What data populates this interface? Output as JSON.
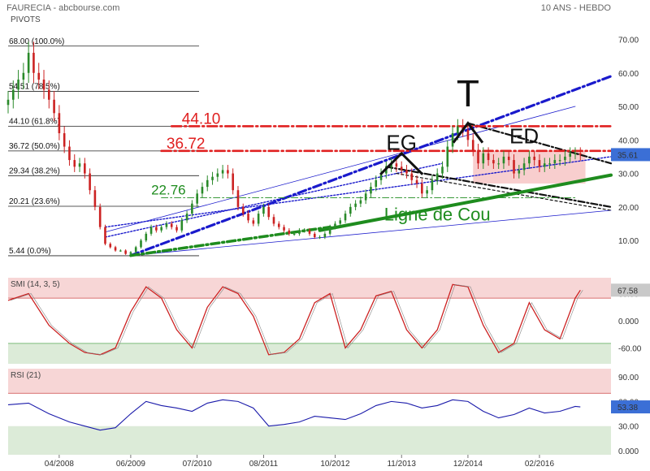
{
  "header": {
    "left_title": "FAURECIA - abcbourse.com",
    "right_title": "10 ANS - HEBDO",
    "pivots_label": "PIVOTS"
  },
  "colors": {
    "candle_up": "#2a8a2a",
    "candle_down": "#cc2222",
    "blue_trend": "#1a1acc",
    "green_neckline": "#1e8c1e",
    "red_level": "#e02020",
    "last_price_badge": "#3b6fd6",
    "overbought_zone": "#f7d6d6",
    "oversold_zone": "#dcebd8",
    "smi_line": "#cc2222",
    "rsi_line": "#1a1aaa"
  },
  "chart_data": [
    {
      "type": "line",
      "name": "price",
      "subtype": "candlestick-weekly",
      "x_labels": [
        "04/2008",
        "06/2009",
        "07/2010",
        "08/2011",
        "10/2012",
        "11/2013",
        "12/2014",
        "02/2016"
      ],
      "x_dates": [
        "2008-04",
        "2009-06",
        "2010-07",
        "2011-08",
        "2012-10",
        "2013-11",
        "2014-12",
        "2016-02"
      ],
      "y_ticks": [
        "70.00",
        "60.00",
        "50.00",
        "40.00",
        "30.00",
        "20.00",
        "10.00"
      ],
      "y_tick_values": [
        70,
        60,
        50,
        40,
        30,
        20,
        10
      ],
      "ylim": [
        3,
        74
      ],
      "xlim": [
        "2007-06",
        "2017-04"
      ],
      "last_value": "35.61",
      "pivots": [
        {
          "label": "68.00 (100.0%)",
          "value": 68.0
        },
        {
          "label": "54.51 (78.5%)",
          "value": 54.51
        },
        {
          "label": "44.10 (61.8%)",
          "value": 44.1
        },
        {
          "label": "36.72 (50.0%)",
          "value": 36.72
        },
        {
          "label": "29.34 (38.2%)",
          "value": 29.34
        },
        {
          "label": "20.21 (23.6%)",
          "value": 20.21
        },
        {
          "label": "5.44 (0.0%)",
          "value": 5.44
        }
      ],
      "levels": [
        {
          "label": "44.10",
          "value": 44.1,
          "color": "#e02020"
        },
        {
          "label": "36.72",
          "value": 36.72,
          "color": "#e02020"
        },
        {
          "label": "22.76",
          "value": 22.76,
          "color": "#1e8c1e"
        }
      ],
      "annotations": [
        {
          "text": "T",
          "x": "2014-12",
          "y": 50
        },
        {
          "text": "EG",
          "x": "2013-11",
          "y": 37
        },
        {
          "text": "ED",
          "x": "2015-11",
          "y": 39
        },
        {
          "text": "Ligne de Cou",
          "x": "2014-06",
          "y": 16
        }
      ],
      "series": [
        {
          "x": [
            "2007-06",
            "2007-07",
            "2007-08",
            "2007-09",
            "2007-10",
            "2007-11",
            "2007-12",
            "2008-01",
            "2008-02",
            "2008-03",
            "2008-04",
            "2008-05",
            "2008-06",
            "2008-07",
            "2008-08",
            "2008-09",
            "2008-10",
            "2008-11",
            "2008-12",
            "2009-01",
            "2009-02",
            "2009-03",
            "2009-04",
            "2009-05",
            "2009-06",
            "2009-07",
            "2009-08",
            "2009-09",
            "2009-10",
            "2009-11",
            "2009-12",
            "2010-01",
            "2010-02",
            "2010-03",
            "2010-04",
            "2010-05",
            "2010-06",
            "2010-07",
            "2010-08",
            "2010-09",
            "2010-10",
            "2010-11",
            "2010-12",
            "2011-01",
            "2011-02",
            "2011-03",
            "2011-04",
            "2011-05",
            "2011-06",
            "2011-07",
            "2011-08",
            "2011-09",
            "2011-10",
            "2011-11",
            "2011-12",
            "2012-01",
            "2012-02",
            "2012-03",
            "2012-04",
            "2012-05",
            "2012-06",
            "2012-07",
            "2012-08",
            "2012-09",
            "2012-10",
            "2012-11",
            "2012-12",
            "2013-01",
            "2013-02",
            "2013-03",
            "2013-04",
            "2013-05",
            "2013-06",
            "2013-07",
            "2013-08",
            "2013-09",
            "2013-10",
            "2013-11",
            "2013-12",
            "2014-01",
            "2014-02",
            "2014-03",
            "2014-04",
            "2014-05",
            "2014-06",
            "2014-07",
            "2014-08",
            "2014-09",
            "2014-10",
            "2014-11",
            "2014-12",
            "2015-01",
            "2015-02",
            "2015-03",
            "2015-04",
            "2015-05",
            "2015-06",
            "2015-07",
            "2015-08",
            "2015-09",
            "2015-10",
            "2015-11",
            "2015-12",
            "2016-01",
            "2016-02",
            "2016-03",
            "2016-04",
            "2016-05",
            "2016-06",
            "2016-07",
            "2016-08",
            "2016-09",
            "2016-10"
          ],
          "values": [
            52,
            55,
            58,
            60,
            66,
            60,
            58,
            55,
            52,
            48,
            42,
            38,
            34,
            32,
            33,
            30,
            25,
            20,
            14,
            9,
            8,
            7,
            7,
            6,
            6.5,
            8,
            10,
            12,
            14,
            13,
            14,
            15,
            14,
            13,
            16,
            18,
            21,
            24,
            26,
            28,
            29,
            30,
            31,
            30,
            25,
            20,
            18,
            16,
            15,
            18,
            20,
            17,
            15,
            14,
            13,
            12,
            12,
            13,
            13,
            12,
            11,
            11,
            12,
            14,
            15,
            16,
            18,
            20,
            21,
            22,
            24,
            26,
            28,
            30,
            32,
            33,
            32,
            31,
            30,
            28,
            27,
            24,
            25,
            28,
            30,
            32,
            38,
            42,
            44,
            43,
            40,
            37,
            33,
            36,
            34,
            33,
            33,
            35,
            34,
            30,
            31,
            33,
            35,
            34,
            32,
            33,
            33,
            34,
            34,
            35,
            36,
            36,
            35.61
          ]
        }
      ]
    },
    {
      "type": "line",
      "name": "SMI (14, 3, 5)",
      "title": "SMI (14, 3, 5)",
      "y_ticks": [
        "60.00",
        "0.000",
        "-60.00"
      ],
      "y_tick_values": [
        60,
        0,
        -60
      ],
      "ylim": [
        -95,
        95
      ],
      "overbought": 50,
      "oversold": -50,
      "last_value": "67.58",
      "series": [
        {
          "x": [
            "2007-06",
            "2007-10",
            "2008-02",
            "2008-06",
            "2008-09",
            "2008-12",
            "2009-03",
            "2009-06",
            "2009-09",
            "2009-12",
            "2010-03",
            "2010-06",
            "2010-09",
            "2010-12",
            "2011-03",
            "2011-06",
            "2011-09",
            "2011-12",
            "2012-03",
            "2012-06",
            "2012-09",
            "2012-12",
            "2013-03",
            "2013-06",
            "2013-09",
            "2013-12",
            "2014-03",
            "2014-06",
            "2014-09",
            "2014-12",
            "2015-03",
            "2015-06",
            "2015-09",
            "2015-12",
            "2016-03",
            "2016-06",
            "2016-09",
            "2016-10"
          ],
          "values": [
            45,
            60,
            -10,
            -50,
            -70,
            -75,
            -60,
            20,
            75,
            50,
            -20,
            -60,
            30,
            75,
            60,
            10,
            -75,
            -70,
            -40,
            40,
            60,
            -60,
            -20,
            55,
            65,
            -20,
            -60,
            -20,
            80,
            75,
            -10,
            -70,
            -50,
            40,
            -20,
            -40,
            50,
            67.58
          ]
        }
      ]
    },
    {
      "type": "line",
      "name": "RSI (21)",
      "title": "RSI (21)",
      "y_ticks": [
        "90.00",
        "60.00",
        "30.00",
        "0.000"
      ],
      "y_tick_values": [
        90,
        60,
        30,
        0
      ],
      "ylim": [
        -5,
        100
      ],
      "overbought": 70,
      "oversold": 30,
      "last_value": "53.38",
      "series": [
        {
          "x": [
            "2007-06",
            "2007-10",
            "2008-02",
            "2008-06",
            "2008-09",
            "2008-12",
            "2009-03",
            "2009-06",
            "2009-09",
            "2009-12",
            "2010-03",
            "2010-06",
            "2010-09",
            "2010-12",
            "2011-03",
            "2011-06",
            "2011-09",
            "2011-12",
            "2012-03",
            "2012-06",
            "2012-09",
            "2012-12",
            "2013-03",
            "2013-06",
            "2013-09",
            "2013-12",
            "2014-03",
            "2014-06",
            "2014-09",
            "2014-12",
            "2015-03",
            "2015-06",
            "2015-09",
            "2015-12",
            "2016-03",
            "2016-06",
            "2016-09",
            "2016-10"
          ],
          "values": [
            56,
            58,
            45,
            35,
            30,
            25,
            28,
            45,
            60,
            55,
            52,
            48,
            58,
            62,
            60,
            52,
            30,
            32,
            35,
            42,
            40,
            38,
            45,
            55,
            60,
            58,
            52,
            55,
            62,
            60,
            48,
            40,
            44,
            52,
            46,
            48,
            54,
            53.38
          ]
        }
      ]
    }
  ]
}
